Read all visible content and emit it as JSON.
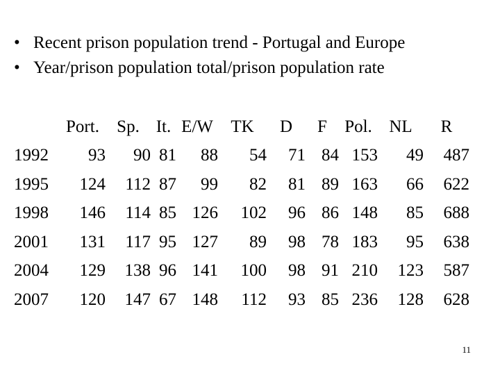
{
  "bullets": [
    "Recent prison population trend - Portugal  and Europe",
    "Year/prison population total/prison population rate"
  ],
  "bullet_symbol": "•",
  "table": {
    "headers": [
      "",
      "Port.",
      "Sp.",
      "It.",
      "E/W",
      "TK",
      "D",
      "F",
      "Pol.",
      "NL",
      "R"
    ],
    "rows": [
      [
        "1992",
        "93",
        "90",
        "81",
        "88",
        "54",
        "71",
        "84",
        "153",
        "49",
        "487"
      ],
      [
        "1995",
        "124",
        "112",
        "87",
        "99",
        "82",
        "81",
        "89",
        "163",
        "66",
        "622"
      ],
      [
        "1998",
        "146",
        "114",
        "85",
        "126",
        "102",
        "96",
        "86",
        "148",
        "85",
        "688"
      ],
      [
        "2001",
        "131",
        "117",
        "95",
        "127",
        "89",
        "98",
        "78",
        "183",
        "95",
        "638"
      ],
      [
        "2004",
        "129",
        "138",
        "96",
        "141",
        "100",
        "98",
        "91",
        "210",
        "123",
        "587"
      ],
      [
        "2007",
        "120",
        "147",
        "67",
        "148",
        "112",
        "93",
        "85",
        "236",
        "128",
        "628"
      ]
    ]
  },
  "page_number": "11"
}
